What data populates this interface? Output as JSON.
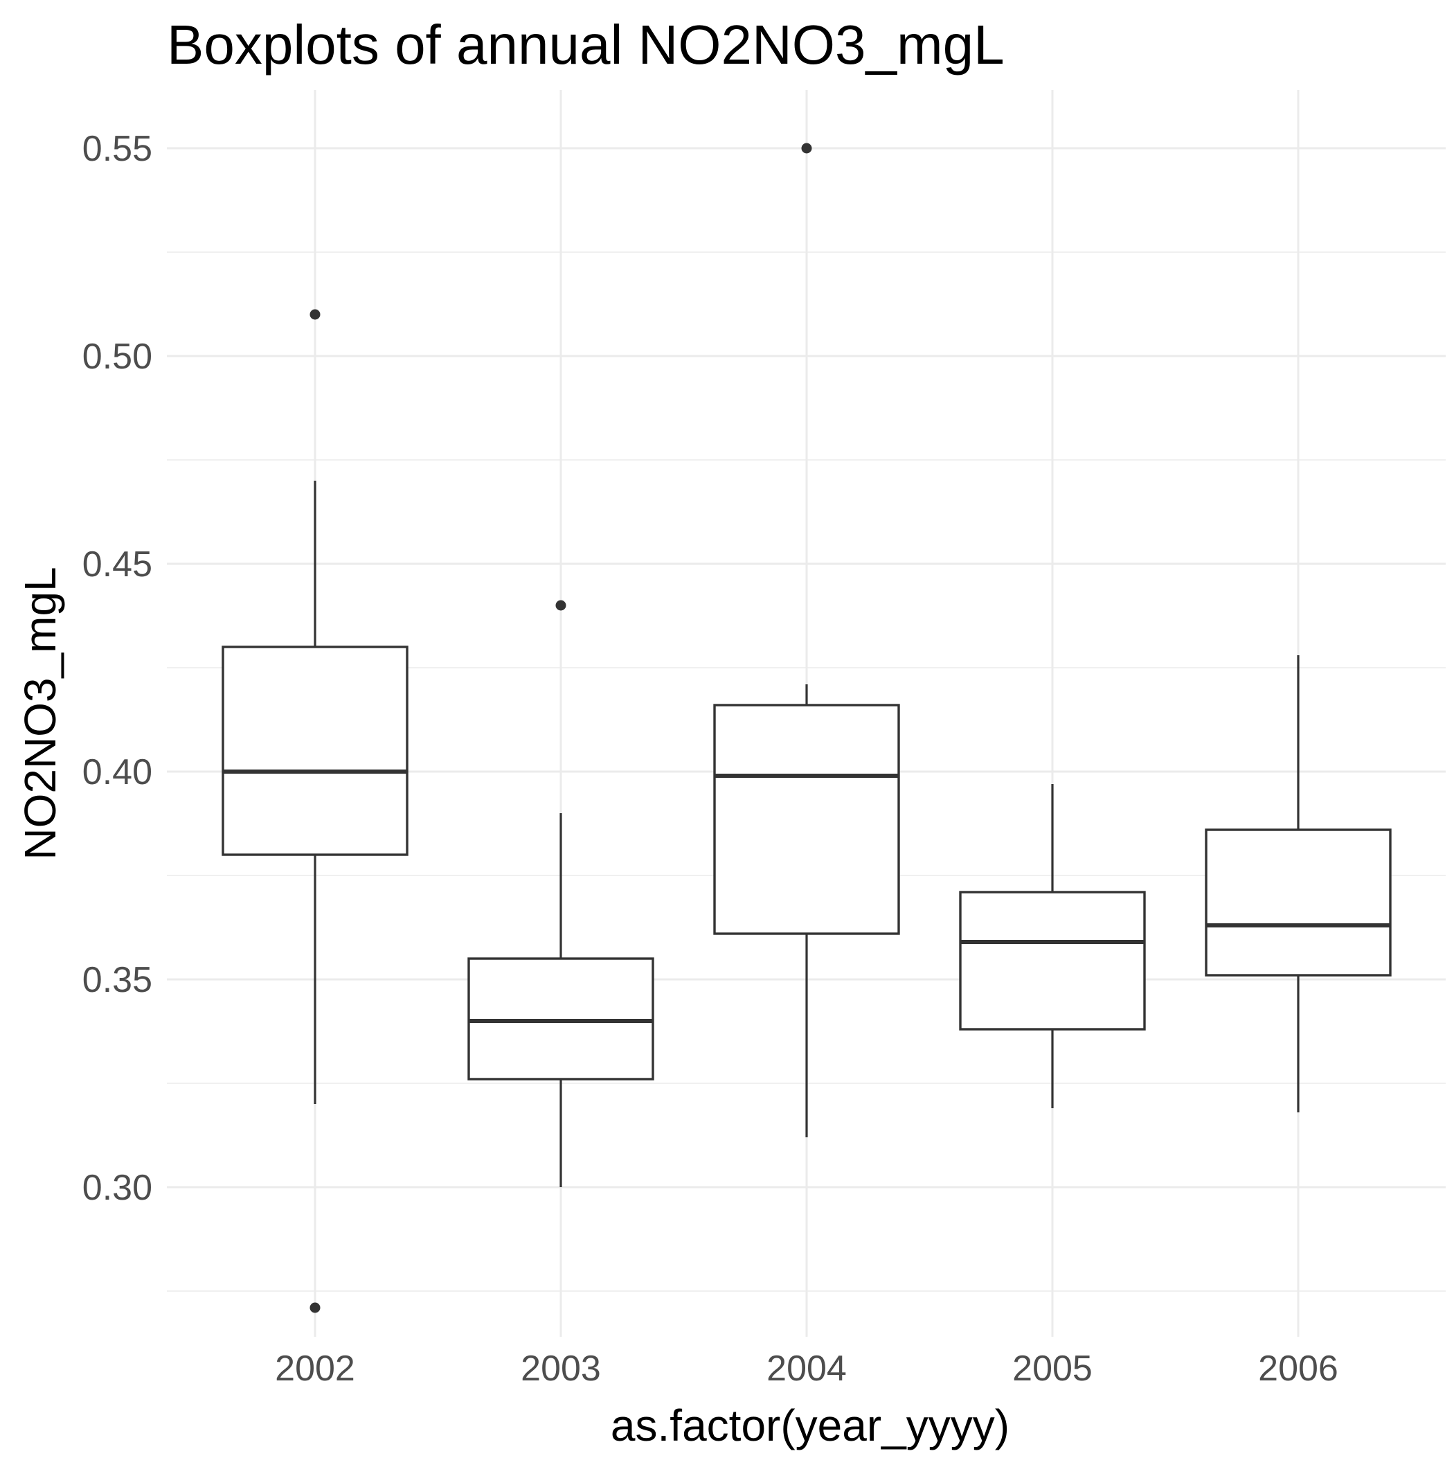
{
  "chart_data": {
    "type": "box",
    "title": "Boxplots of annual NO2NO3_mgL",
    "xlabel": "as.factor(year_yyyy)",
    "ylabel": "NO2NO3_mgL",
    "ylim": [
      0.264,
      0.564
    ],
    "y_ticks": [
      0.3,
      0.35,
      0.4,
      0.45,
      0.5,
      0.55
    ],
    "y_tick_labels": [
      "0.30",
      "0.35",
      "0.40",
      "0.45",
      "0.50",
      "0.55"
    ],
    "y_minor_ticks": [
      0.275,
      0.325,
      0.375,
      0.425,
      0.475,
      0.525
    ],
    "grid": true,
    "legend": "none",
    "categories": [
      "2002",
      "2003",
      "2004",
      "2005",
      "2006"
    ],
    "boxes": [
      {
        "category": "2002",
        "whisker_low": 0.32,
        "q1": 0.38,
        "median": 0.4,
        "q3": 0.43,
        "whisker_high": 0.47,
        "outliers": [
          0.51,
          0.271
        ]
      },
      {
        "category": "2003",
        "whisker_low": 0.3,
        "q1": 0.326,
        "median": 0.34,
        "q3": 0.355,
        "whisker_high": 0.39,
        "outliers": [
          0.44
        ]
      },
      {
        "category": "2004",
        "whisker_low": 0.312,
        "q1": 0.361,
        "median": 0.399,
        "q3": 0.416,
        "whisker_high": 0.421,
        "outliers": [
          0.55
        ]
      },
      {
        "category": "2005",
        "whisker_low": 0.319,
        "q1": 0.338,
        "median": 0.359,
        "q3": 0.371,
        "whisker_high": 0.397,
        "outliers": []
      },
      {
        "category": "2006",
        "whisker_low": 0.318,
        "q1": 0.351,
        "median": 0.363,
        "q3": 0.386,
        "whisker_high": 0.428,
        "outliers": []
      }
    ],
    "colors": {
      "box_stroke": "#333333",
      "box_fill": "#ffffff",
      "grid": "#ebebeb",
      "tick_text": "#4d4d4d",
      "title_text": "#000000"
    }
  }
}
